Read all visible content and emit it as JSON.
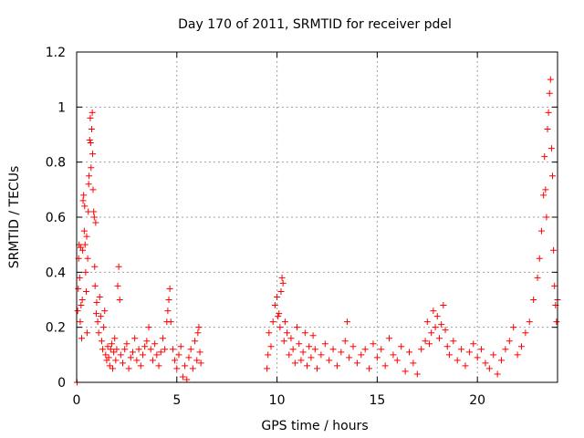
{
  "chart_data": {
    "type": "scatter",
    "title": "Day 170 of 2011, SRMTID for receiver pdel",
    "xlabel": "GPS time / hours",
    "ylabel": "SRMTID / TECUs",
    "xlim": [
      0,
      24
    ],
    "ylim": [
      0,
      1.2
    ],
    "xticks": [
      0,
      5,
      10,
      15,
      20
    ],
    "xtick_labels": [
      "0",
      "5",
      "10",
      "15",
      "20"
    ],
    "yticks": [
      0,
      0.2,
      0.4,
      0.6,
      0.8,
      1,
      1.2
    ],
    "ytick_labels": [
      "0",
      "0.2",
      "0.4",
      "0.6",
      "0.8",
      "1",
      "1.2"
    ],
    "grid": true,
    "marker": "+",
    "color": "#ff0000",
    "series": [
      {
        "name": "SRMTID",
        "points": [
          [
            0.02,
            0.0
          ],
          [
            0.05,
            0.26
          ],
          [
            0.08,
            0.34
          ],
          [
            0.1,
            0.45
          ],
          [
            0.12,
            0.5
          ],
          [
            0.15,
            0.38
          ],
          [
            0.18,
            0.22
          ],
          [
            0.2,
            0.49
          ],
          [
            0.22,
            0.28
          ],
          [
            0.25,
            0.16
          ],
          [
            0.28,
            0.3
          ],
          [
            0.3,
            0.48
          ],
          [
            0.32,
            0.66
          ],
          [
            0.35,
            0.68
          ],
          [
            0.38,
            0.55
          ],
          [
            0.4,
            0.64
          ],
          [
            0.42,
            0.5
          ],
          [
            0.45,
            0.4
          ],
          [
            0.48,
            0.33
          ],
          [
            0.5,
            0.53
          ],
          [
            0.52,
            0.18
          ],
          [
            0.55,
            0.45
          ],
          [
            0.58,
            0.62
          ],
          [
            0.6,
            0.72
          ],
          [
            0.62,
            0.75
          ],
          [
            0.65,
            0.88
          ],
          [
            0.68,
            0.96
          ],
          [
            0.7,
            0.87
          ],
          [
            0.72,
            0.78
          ],
          [
            0.75,
            0.92
          ],
          [
            0.78,
            0.98
          ],
          [
            0.8,
            0.83
          ],
          [
            0.82,
            0.7
          ],
          [
            0.85,
            0.62
          ],
          [
            0.88,
            0.6
          ],
          [
            0.9,
            0.42
          ],
          [
            0.92,
            0.35
          ],
          [
            0.95,
            0.58
          ],
          [
            0.98,
            0.25
          ],
          [
            1.0,
            0.29
          ],
          [
            1.05,
            0.22
          ],
          [
            1.1,
            0.18
          ],
          [
            1.15,
            0.31
          ],
          [
            1.2,
            0.24
          ],
          [
            1.25,
            0.15
          ],
          [
            1.3,
            0.12
          ],
          [
            1.35,
            0.2
          ],
          [
            1.4,
            0.26
          ],
          [
            1.45,
            0.1
          ],
          [
            1.5,
            0.08
          ],
          [
            1.55,
            0.13
          ],
          [
            1.6,
            0.09
          ],
          [
            1.65,
            0.06
          ],
          [
            1.7,
            0.12
          ],
          [
            1.75,
            0.14
          ],
          [
            1.8,
            0.05
          ],
          [
            1.85,
            0.11
          ],
          [
            1.9,
            0.16
          ],
          [
            1.95,
            0.08
          ],
          [
            2.0,
            0.12
          ],
          [
            2.05,
            0.35
          ],
          [
            2.1,
            0.42
          ],
          [
            2.15,
            0.3
          ],
          [
            2.2,
            0.1
          ],
          [
            2.3,
            0.07
          ],
          [
            2.4,
            0.12
          ],
          [
            2.5,
            0.14
          ],
          [
            2.6,
            0.05
          ],
          [
            2.7,
            0.09
          ],
          [
            2.8,
            0.11
          ],
          [
            2.9,
            0.16
          ],
          [
            3.0,
            0.08
          ],
          [
            3.1,
            0.12
          ],
          [
            3.2,
            0.06
          ],
          [
            3.3,
            0.1
          ],
          [
            3.4,
            0.13
          ],
          [
            3.5,
            0.15
          ],
          [
            3.6,
            0.2
          ],
          [
            3.7,
            0.12
          ],
          [
            3.8,
            0.08
          ],
          [
            3.9,
            0.14
          ],
          [
            4.0,
            0.1
          ],
          [
            4.1,
            0.06
          ],
          [
            4.2,
            0.11
          ],
          [
            4.3,
            0.16
          ],
          [
            4.4,
            0.12
          ],
          [
            4.5,
            0.22
          ],
          [
            4.55,
            0.26
          ],
          [
            4.6,
            0.3
          ],
          [
            4.65,
            0.34
          ],
          [
            4.7,
            0.22
          ],
          [
            4.8,
            0.12
          ],
          [
            4.9,
            0.08
          ],
          [
            5.0,
            0.05
          ],
          [
            5.1,
            0.1
          ],
          [
            5.2,
            0.13
          ],
          [
            5.3,
            0.02
          ],
          [
            5.4,
            0.06
          ],
          [
            5.5,
            0.01
          ],
          [
            5.6,
            0.09
          ],
          [
            5.7,
            0.12
          ],
          [
            5.8,
            0.05
          ],
          [
            5.9,
            0.15
          ],
          [
            6.0,
            0.08
          ],
          [
            6.05,
            0.18
          ],
          [
            6.1,
            0.2
          ],
          [
            6.15,
            0.11
          ],
          [
            6.2,
            0.07
          ],
          [
            9.5,
            0.05
          ],
          [
            9.55,
            0.1
          ],
          [
            9.6,
            0.18
          ],
          [
            9.7,
            0.13
          ],
          [
            9.8,
            0.22
          ],
          [
            9.9,
            0.28
          ],
          [
            10.0,
            0.31
          ],
          [
            10.05,
            0.24
          ],
          [
            10.1,
            0.25
          ],
          [
            10.15,
            0.2
          ],
          [
            10.2,
            0.33
          ],
          [
            10.25,
            0.38
          ],
          [
            10.3,
            0.36
          ],
          [
            10.35,
            0.15
          ],
          [
            10.4,
            0.22
          ],
          [
            10.5,
            0.18
          ],
          [
            10.6,
            0.1
          ],
          [
            10.7,
            0.16
          ],
          [
            10.8,
            0.12
          ],
          [
            10.9,
            0.07
          ],
          [
            11.0,
            0.2
          ],
          [
            11.1,
            0.14
          ],
          [
            11.2,
            0.08
          ],
          [
            11.3,
            0.11
          ],
          [
            11.4,
            0.18
          ],
          [
            11.5,
            0.06
          ],
          [
            11.6,
            0.13
          ],
          [
            11.7,
            0.09
          ],
          [
            11.8,
            0.17
          ],
          [
            11.9,
            0.12
          ],
          [
            12.0,
            0.05
          ],
          [
            12.2,
            0.1
          ],
          [
            12.4,
            0.14
          ],
          [
            12.6,
            0.08
          ],
          [
            12.8,
            0.12
          ],
          [
            13.0,
            0.06
          ],
          [
            13.2,
            0.11
          ],
          [
            13.4,
            0.15
          ],
          [
            13.5,
            0.22
          ],
          [
            13.6,
            0.09
          ],
          [
            13.8,
            0.13
          ],
          [
            14.0,
            0.07
          ],
          [
            14.2,
            0.1
          ],
          [
            14.4,
            0.12
          ],
          [
            14.6,
            0.05
          ],
          [
            14.8,
            0.14
          ],
          [
            15.0,
            0.09
          ],
          [
            15.2,
            0.12
          ],
          [
            15.4,
            0.06
          ],
          [
            15.6,
            0.16
          ],
          [
            15.8,
            0.1
          ],
          [
            16.0,
            0.08
          ],
          [
            16.2,
            0.13
          ],
          [
            16.4,
            0.04
          ],
          [
            16.6,
            0.11
          ],
          [
            16.8,
            0.07
          ],
          [
            17.0,
            0.03
          ],
          [
            17.2,
            0.12
          ],
          [
            17.4,
            0.15
          ],
          [
            17.5,
            0.22
          ],
          [
            17.6,
            0.14
          ],
          [
            17.7,
            0.18
          ],
          [
            17.8,
            0.26
          ],
          [
            17.9,
            0.2
          ],
          [
            18.0,
            0.24
          ],
          [
            18.1,
            0.16
          ],
          [
            18.2,
            0.21
          ],
          [
            18.3,
            0.28
          ],
          [
            18.4,
            0.19
          ],
          [
            18.5,
            0.13
          ],
          [
            18.6,
            0.1
          ],
          [
            18.8,
            0.15
          ],
          [
            19.0,
            0.08
          ],
          [
            19.2,
            0.12
          ],
          [
            19.4,
            0.06
          ],
          [
            19.6,
            0.11
          ],
          [
            19.8,
            0.14
          ],
          [
            20.0,
            0.09
          ],
          [
            20.2,
            0.12
          ],
          [
            20.4,
            0.07
          ],
          [
            20.6,
            0.05
          ],
          [
            20.8,
            0.1
          ],
          [
            21.0,
            0.03
          ],
          [
            21.2,
            0.08
          ],
          [
            21.4,
            0.12
          ],
          [
            21.6,
            0.15
          ],
          [
            21.8,
            0.2
          ],
          [
            22.0,
            0.1
          ],
          [
            22.2,
            0.13
          ],
          [
            22.4,
            0.18
          ],
          [
            22.6,
            0.22
          ],
          [
            22.8,
            0.3
          ],
          [
            23.0,
            0.38
          ],
          [
            23.1,
            0.45
          ],
          [
            23.2,
            0.55
          ],
          [
            23.3,
            0.68
          ],
          [
            23.35,
            0.82
          ],
          [
            23.4,
            0.7
          ],
          [
            23.45,
            0.6
          ],
          [
            23.5,
            0.92
          ],
          [
            23.55,
            0.98
          ],
          [
            23.6,
            1.05
          ],
          [
            23.65,
            1.1
          ],
          [
            23.7,
            0.85
          ],
          [
            23.75,
            0.75
          ],
          [
            23.8,
            0.48
          ],
          [
            23.85,
            0.35
          ],
          [
            23.9,
            0.28
          ],
          [
            23.95,
            0.22
          ],
          [
            24.0,
            0.3
          ]
        ]
      }
    ]
  }
}
